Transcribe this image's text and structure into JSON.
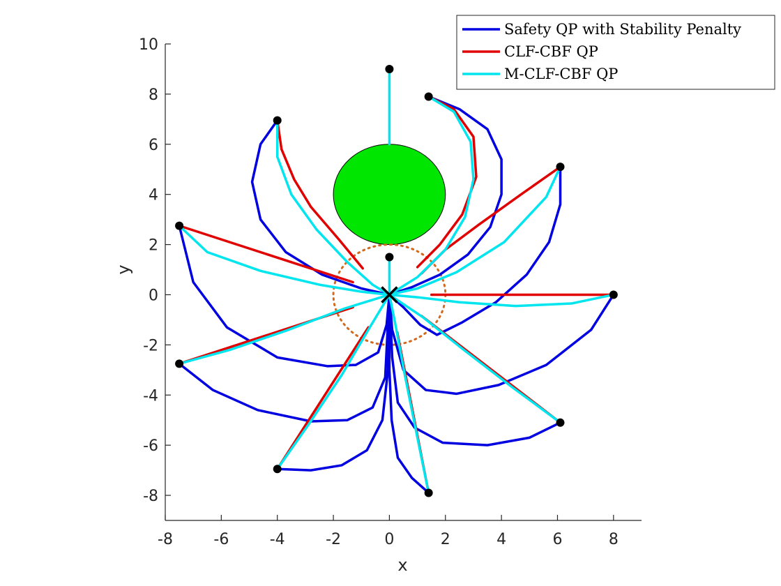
{
  "chart_data": {
    "type": "line",
    "xlabel": "x",
    "ylabel": "y",
    "xlim": [
      -8,
      9
    ],
    "ylim": [
      -9,
      10
    ],
    "xticks": [
      -8,
      -6,
      -4,
      -2,
      0,
      2,
      4,
      6,
      8
    ],
    "yticks": [
      -8,
      -6,
      -4,
      -2,
      0,
      2,
      4,
      6,
      8,
      10
    ],
    "xtick_labels": [
      "-8",
      "-6",
      "-4",
      "-2",
      "0",
      "2",
      "4",
      "6",
      "8"
    ],
    "ytick_labels": [
      "-8",
      "-6",
      "-4",
      "-2",
      "0",
      "2",
      "4",
      "6",
      "8",
      "10"
    ],
    "grid": false,
    "legend_position": "top-right",
    "colors": {
      "safety": "#0000e0",
      "clf_cbf": "#e00000",
      "mclf": "#00e5ee",
      "obstacle": "#00e600",
      "goal_circle": "#d2691e"
    },
    "obstacle": {
      "center": [
        0,
        4
      ],
      "radius": 2
    },
    "goal_region": {
      "center": [
        0,
        0
      ],
      "radius": 2
    },
    "goal_marker": [
      0,
      0
    ],
    "start_points": [
      [
        0,
        9
      ],
      [
        1.4,
        7.9
      ],
      [
        -4,
        6.95
      ],
      [
        6.1,
        5.1
      ],
      [
        -7.5,
        2.75
      ],
      [
        0,
        1.5
      ],
      [
        8,
        0
      ],
      [
        -7.5,
        -2.75
      ],
      [
        6.1,
        -5.1
      ],
      [
        -4,
        -6.95
      ],
      [
        1.4,
        -7.9
      ]
    ],
    "series": [
      {
        "name": "Safety QP with Stability Penalty",
        "color": "#0000e0",
        "lines": [
          [
            [
              1.4,
              7.9
            ],
            [
              2.5,
              7.4
            ],
            [
              3.5,
              6.6
            ],
            [
              4.0,
              5.4
            ],
            [
              4.0,
              4.0
            ],
            [
              3.6,
              2.7
            ],
            [
              2.8,
              1.6
            ],
            [
              1.8,
              0.8
            ],
            [
              0.8,
              0.3
            ],
            [
              0,
              0
            ]
          ],
          [
            [
              -4,
              6.95
            ],
            [
              -4.6,
              6.0
            ],
            [
              -4.9,
              4.5
            ],
            [
              -4.6,
              3.0
            ],
            [
              -3.7,
              1.7
            ],
            [
              -2.4,
              0.8
            ],
            [
              -1.0,
              0.25
            ],
            [
              0,
              0
            ]
          ],
          [
            [
              6.1,
              5.1
            ],
            [
              6.1,
              3.6
            ],
            [
              5.7,
              2.1
            ],
            [
              4.9,
              0.8
            ],
            [
              3.8,
              -0.3
            ],
            [
              2.6,
              -1.1
            ],
            [
              1.7,
              -1.6
            ],
            [
              1.1,
              -1.2
            ],
            [
              0.5,
              -0.5
            ],
            [
              0,
              0
            ]
          ],
          [
            [
              -7.5,
              2.75
            ],
            [
              -7.0,
              0.5
            ],
            [
              -5.8,
              -1.3
            ],
            [
              -4.0,
              -2.5
            ],
            [
              -2.2,
              -2.85
            ],
            [
              -1.2,
              -2.8
            ],
            [
              -0.4,
              -2.3
            ],
            [
              -0.1,
              -1.2
            ],
            [
              0,
              0
            ]
          ],
          [
            [
              8,
              0
            ],
            [
              7.2,
              -1.4
            ],
            [
              5.6,
              -2.8
            ],
            [
              3.9,
              -3.6
            ],
            [
              2.4,
              -3.95
            ],
            [
              1.3,
              -3.8
            ],
            [
              0.5,
              -3.0
            ],
            [
              0.1,
              -1.4
            ],
            [
              0,
              0
            ]
          ],
          [
            [
              -7.5,
              -2.75
            ],
            [
              -6.3,
              -3.8
            ],
            [
              -4.7,
              -4.6
            ],
            [
              -2.8,
              -5.05
            ],
            [
              -1.5,
              -5.0
            ],
            [
              -0.6,
              -4.5
            ],
            [
              -0.15,
              -3.3
            ],
            [
              0,
              0
            ]
          ],
          [
            [
              6.1,
              -5.1
            ],
            [
              5.0,
              -5.7
            ],
            [
              3.5,
              -6.0
            ],
            [
              1.9,
              -5.9
            ],
            [
              0.9,
              -5.3
            ],
            [
              0.3,
              -4.3
            ],
            [
              0.1,
              -2.5
            ],
            [
              0,
              0
            ]
          ],
          [
            [
              -4,
              -6.95
            ],
            [
              -2.8,
              -7.0
            ],
            [
              -1.7,
              -6.8
            ],
            [
              -0.8,
              -6.2
            ],
            [
              -0.25,
              -5.0
            ],
            [
              -0.05,
              -3.0
            ],
            [
              0,
              0
            ]
          ],
          [
            [
              1.4,
              -7.9
            ],
            [
              0.8,
              -7.3
            ],
            [
              0.3,
              -6.5
            ],
            [
              0.08,
              -5.0
            ],
            [
              0,
              -3.0
            ],
            [
              0,
              0
            ]
          ]
        ]
      },
      {
        "name": "CLF-CBF QP",
        "color": "#e00000",
        "lines": [
          [
            [
              1.4,
              7.9
            ],
            [
              2.3,
              7.4
            ],
            [
              3.0,
              6.3
            ],
            [
              3.1,
              4.7
            ],
            [
              2.6,
              3.2
            ],
            [
              1.8,
              2.0
            ],
            [
              1.0,
              1.1
            ]
          ],
          [
            [
              -4,
              6.95
            ],
            [
              -3.85,
              5.8
            ],
            [
              -3.4,
              4.6
            ],
            [
              -2.8,
              3.5
            ],
            [
              -1.8,
              2.2
            ],
            [
              -0.95,
              1.05
            ]
          ],
          [
            [
              6.1,
              5.1
            ],
            [
              4.7,
              4.0
            ],
            [
              3.2,
              2.8
            ],
            [
              2.0,
              1.8
            ],
            [
              1.15,
              0.85
            ]
          ],
          [
            [
              -7.5,
              2.75
            ],
            [
              -1.3,
              0.5
            ]
          ],
          [
            [
              8,
              0
            ],
            [
              1.5,
              0
            ]
          ],
          [
            [
              -7.5,
              -2.75
            ],
            [
              -1.3,
              -0.5
            ]
          ],
          [
            [
              6.1,
              -5.1
            ],
            [
              1.15,
              -0.85
            ]
          ],
          [
            [
              -4,
              -6.95
            ],
            [
              -0.75,
              -1.3
            ]
          ],
          [
            [
              1.4,
              -7.9
            ],
            [
              0.28,
              -1.5
            ]
          ]
        ]
      },
      {
        "name": "M-CLF-CBF QP",
        "color": "#00e5ee",
        "lines": [
          [
            [
              0,
              9
            ],
            [
              0,
              6.0
            ]
          ],
          [
            [
              1.4,
              7.9
            ],
            [
              2.3,
              7.3
            ],
            [
              2.9,
              6.1
            ],
            [
              3.0,
              4.6
            ],
            [
              2.7,
              3.1
            ],
            [
              2.0,
              1.8
            ],
            [
              1.0,
              0.7
            ],
            [
              0,
              0
            ]
          ],
          [
            [
              -4,
              6.95
            ],
            [
              -4.0,
              5.5
            ],
            [
              -3.5,
              4.0
            ],
            [
              -2.6,
              2.6
            ],
            [
              -1.5,
              1.3
            ],
            [
              -0.6,
              0.4
            ],
            [
              0,
              0
            ]
          ],
          [
            [
              6.1,
              5.1
            ],
            [
              5.6,
              3.9
            ],
            [
              4.1,
              2.1
            ],
            [
              2.4,
              0.9
            ],
            [
              1.0,
              0.25
            ],
            [
              0,
              0
            ]
          ],
          [
            [
              -7.5,
              2.75
            ],
            [
              -6.5,
              1.7
            ],
            [
              -4.6,
              0.95
            ],
            [
              -2.5,
              0.4
            ],
            [
              -1.0,
              0.12
            ],
            [
              0,
              0
            ]
          ],
          [
            [
              0,
              1.5
            ],
            [
              0,
              0
            ]
          ],
          [
            [
              8,
              0
            ],
            [
              6.5,
              -0.35
            ],
            [
              4.5,
              -0.45
            ],
            [
              2.5,
              -0.3
            ],
            [
              1.0,
              -0.1
            ],
            [
              0,
              0
            ]
          ],
          [
            [
              -7.5,
              -2.75
            ],
            [
              -5.7,
              -2.2
            ],
            [
              -3.6,
              -1.4
            ],
            [
              -1.6,
              -0.55
            ],
            [
              0,
              0
            ]
          ],
          [
            [
              6.1,
              -5.1
            ],
            [
              4.4,
              -3.7
            ],
            [
              2.6,
              -2.15
            ],
            [
              1.2,
              -0.9
            ],
            [
              0,
              0
            ]
          ],
          [
            [
              -4,
              -6.95
            ],
            [
              -2.9,
              -5.2
            ],
            [
              -1.7,
              -3.2
            ],
            [
              -0.7,
              -1.3
            ],
            [
              0,
              0
            ]
          ],
          [
            [
              1.4,
              -7.9
            ],
            [
              1.0,
              -5.7
            ],
            [
              0.55,
              -3.2
            ],
            [
              0.2,
              -1.1
            ],
            [
              0,
              0
            ]
          ]
        ]
      }
    ]
  }
}
